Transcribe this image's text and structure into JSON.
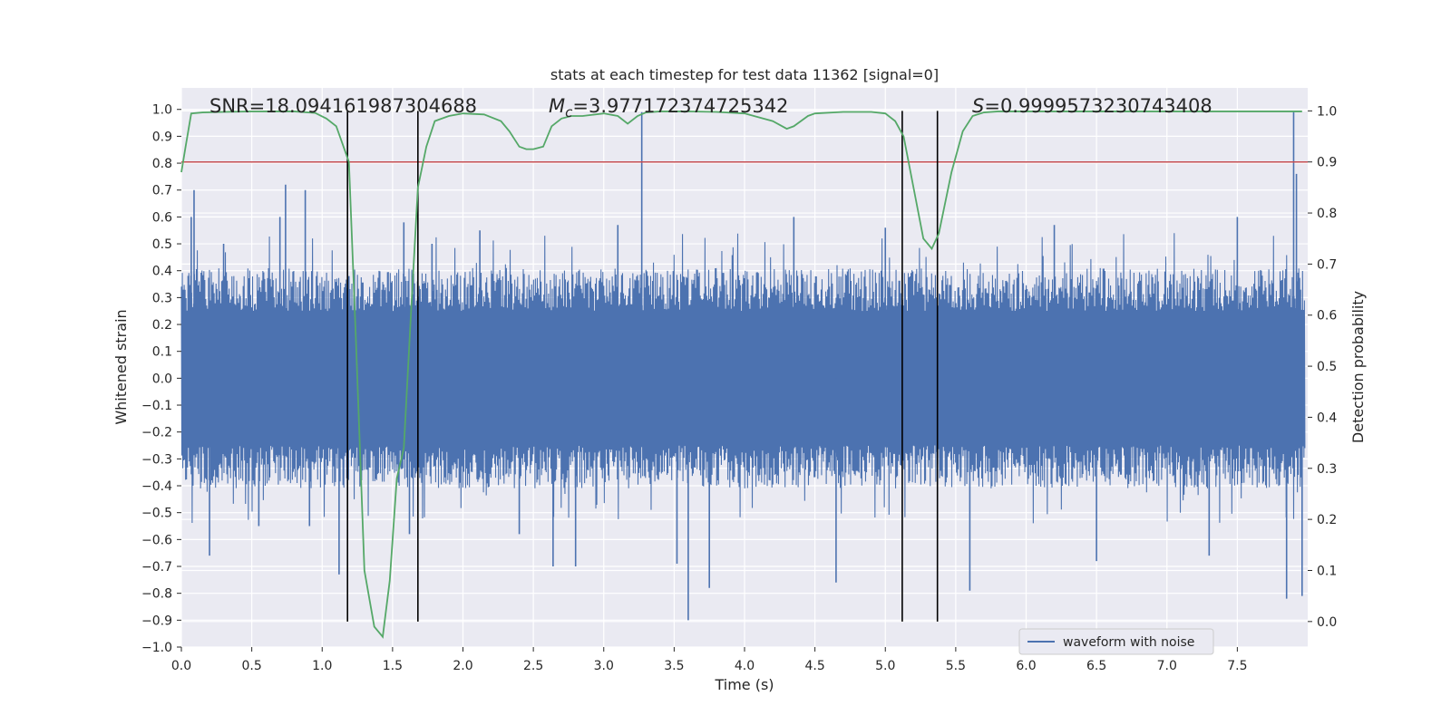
{
  "chart_data": {
    "type": "line",
    "title": "stats at each timestep for test data 11362 [signal=0]",
    "xlabel": "Time (s)",
    "ylabel": "Whitened strain",
    "y2label": "Detection probability",
    "xlim": [
      0.0,
      8.0
    ],
    "ylim": [
      -1.0,
      1.08
    ],
    "y2lim": [
      -0.05,
      1.045
    ],
    "x_ticks": [
      0.0,
      0.5,
      1.0,
      1.5,
      2.0,
      2.5,
      3.0,
      3.5,
      4.0,
      4.5,
      5.0,
      5.5,
      6.0,
      6.5,
      7.0,
      7.5
    ],
    "y_ticks": [
      -1.0,
      -0.9,
      -0.8,
      -0.7,
      -0.6,
      -0.5,
      -0.4,
      -0.3,
      -0.2,
      -0.1,
      0.0,
      0.1,
      0.2,
      0.3,
      0.4,
      0.5,
      0.6,
      0.7,
      0.8,
      0.9,
      1.0
    ],
    "y2_ticks": [
      0.0,
      0.1,
      0.2,
      0.3,
      0.4,
      0.5,
      0.6,
      0.7,
      0.8,
      0.9,
      1.0
    ],
    "grid": true,
    "legend": {
      "placement": "lower-right",
      "entries": [
        "waveform with noise"
      ]
    },
    "annotations": {
      "snr": "SNR=18.094161987304688",
      "mc_symbol": "M",
      "mc_sub": "c",
      "mc_value": "=3.977172374725342",
      "s_symbol": "S",
      "s_value": "=0.9999573230743408"
    },
    "series": [
      {
        "name": "waveform with noise",
        "axis": "left",
        "color": "#4c72b0",
        "envelope_note_hidden": true,
        "spikes": [
          [
            0.07,
            0.6
          ],
          [
            0.09,
            0.7
          ],
          [
            0.2,
            -0.66
          ],
          [
            0.3,
            0.5
          ],
          [
            0.55,
            -0.55
          ],
          [
            0.7,
            0.6
          ],
          [
            0.74,
            0.72
          ],
          [
            0.88,
            0.7
          ],
          [
            0.91,
            -0.55
          ],
          [
            1.12,
            -0.73
          ],
          [
            1.19,
            0.38
          ],
          [
            1.58,
            0.58
          ],
          [
            1.62,
            -0.58
          ],
          [
            1.78,
            0.5
          ],
          [
            2.12,
            0.55
          ],
          [
            2.4,
            -0.58
          ],
          [
            2.64,
            -0.7
          ],
          [
            2.8,
            -0.7
          ],
          [
            3.1,
            0.57
          ],
          [
            3.27,
            0.99
          ],
          [
            3.52,
            -0.69
          ],
          [
            3.6,
            -0.9
          ],
          [
            3.75,
            -0.78
          ],
          [
            4.35,
            0.6
          ],
          [
            4.65,
            -0.76
          ],
          [
            5.0,
            0.56
          ],
          [
            5.6,
            -0.79
          ],
          [
            6.2,
            0.57
          ],
          [
            6.5,
            -0.68
          ],
          [
            7.3,
            -0.66
          ],
          [
            7.5,
            0.6
          ],
          [
            7.85,
            -0.82
          ],
          [
            7.9,
            0.99
          ],
          [
            7.92,
            0.76
          ],
          [
            7.96,
            -0.81
          ]
        ]
      },
      {
        "name": "detection probability",
        "axis": "right",
        "color": "#55a868",
        "x": [
          0.0,
          0.03,
          0.07,
          0.15,
          0.3,
          0.5,
          0.8,
          0.95,
          1.03,
          1.1,
          1.19,
          1.24,
          1.3,
          1.37,
          1.43,
          1.48,
          1.53,
          1.58,
          1.63,
          1.68,
          1.74,
          1.8,
          1.9,
          2.0,
          2.15,
          2.27,
          2.33,
          2.4,
          2.45,
          2.5,
          2.57,
          2.63,
          2.7,
          2.77,
          2.85,
          3.0,
          3.1,
          3.17,
          3.24,
          3.3,
          3.4,
          3.6,
          3.8,
          4.0,
          4.2,
          4.3,
          4.35,
          4.45,
          4.5,
          4.7,
          4.9,
          5.0,
          5.07,
          5.13,
          5.2,
          5.27,
          5.33,
          5.38,
          5.47,
          5.55,
          5.62,
          5.7,
          5.8,
          6.0,
          6.5,
          7.0,
          7.5,
          7.96
        ],
        "y": [
          0.88,
          0.93,
          0.995,
          0.997,
          0.998,
          0.999,
          0.999,
          0.996,
          0.985,
          0.97,
          0.9,
          0.55,
          0.1,
          -0.01,
          -0.03,
          0.08,
          0.28,
          0.34,
          0.6,
          0.85,
          0.93,
          0.98,
          0.99,
          0.995,
          0.993,
          0.98,
          0.96,
          0.93,
          0.925,
          0.925,
          0.93,
          0.97,
          0.985,
          0.99,
          0.99,
          0.995,
          0.99,
          0.975,
          0.99,
          0.997,
          0.999,
          0.999,
          0.998,
          0.995,
          0.98,
          0.965,
          0.97,
          0.99,
          0.995,
          0.998,
          0.998,
          0.995,
          0.98,
          0.95,
          0.85,
          0.75,
          0.73,
          0.76,
          0.88,
          0.96,
          0.99,
          0.997,
          0.999,
          0.999,
          0.999,
          0.999,
          0.999,
          0.999
        ]
      },
      {
        "name": "threshold",
        "axis": "right",
        "color": "#c44e52",
        "y": [
          0.9,
          0.9
        ]
      }
    ],
    "vlines": [
      1.18,
      1.68,
      5.12,
      5.37
    ]
  }
}
